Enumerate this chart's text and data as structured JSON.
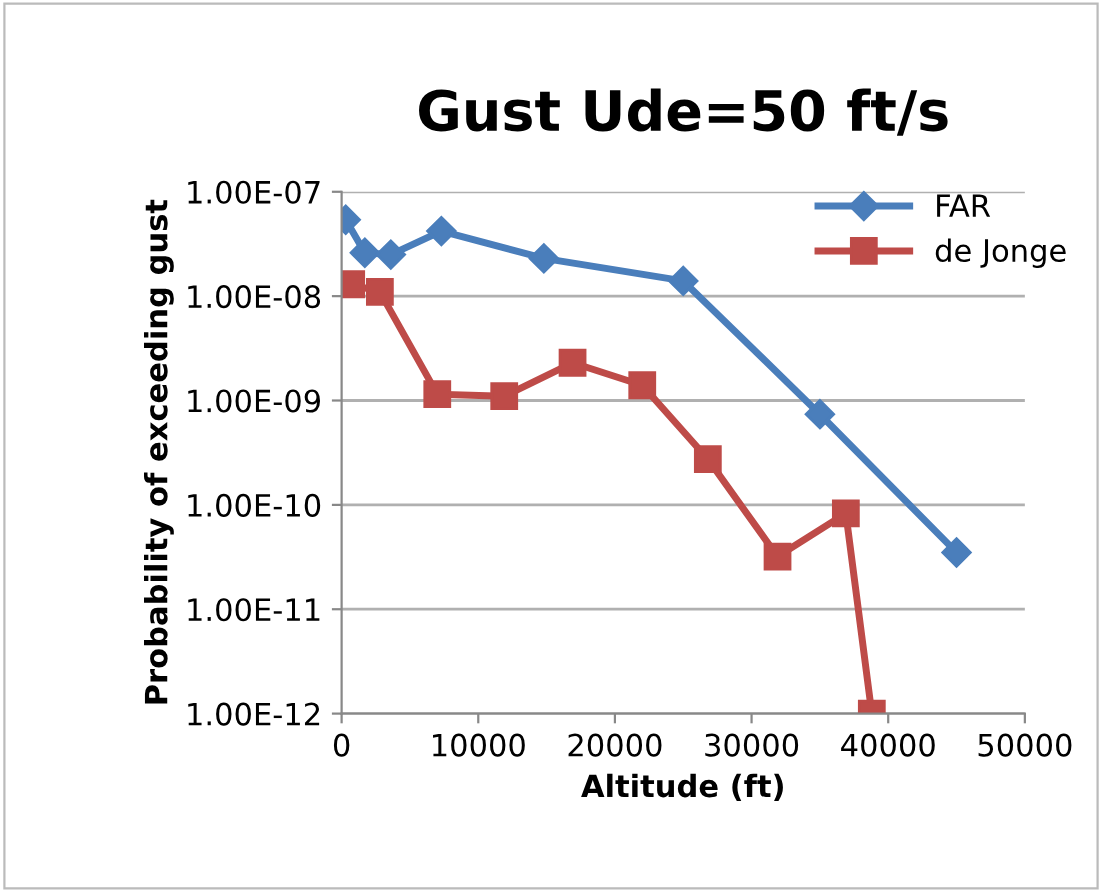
{
  "chart_data": {
    "type": "line",
    "title": "Gust Ude=50 ft/s",
    "xlabel": "Altitude (ft)",
    "ylabel": "Probability of exceeding gust",
    "log": "y",
    "grid": "y",
    "legend": "top right",
    "xlim": [
      0,
      50000
    ],
    "xticks": [
      0,
      10000,
      20000,
      30000,
      40000,
      50000
    ],
    "ylim": [
      1e-12,
      1e-07
    ],
    "yticks": [
      {
        "value": 1e-12,
        "label": "1.00E-12"
      },
      {
        "value": 1e-11,
        "label": "1.00E-11"
      },
      {
        "value": 1e-10,
        "label": "1.00E-10"
      },
      {
        "value": 1e-09,
        "label": "1.00E-09"
      },
      {
        "value": 1e-08,
        "label": "1.00E-08"
      },
      {
        "value": 1e-07,
        "label": "1.00E-07"
      }
    ],
    "series": [
      {
        "name": "FAR",
        "color": "#4a7ebb",
        "marker": "diamond",
        "x": [
          300,
          1700,
          3600,
          7300,
          14800,
          25000,
          35000,
          45000
        ],
        "values": [
          5.4e-08,
          2.6e-08,
          2.5e-08,
          4.2e-08,
          2.3e-08,
          1.4e-08,
          7.4e-10,
          3.5e-11
        ]
      },
      {
        "name": "de Jonge",
        "color": "#be4b48",
        "marker": "square",
        "x": [
          700,
          2800,
          7000,
          11900,
          16900,
          22000,
          26800,
          31900,
          36900,
          38800
        ],
        "values": [
          1.3e-08,
          1.1e-08,
          1.15e-09,
          1.1e-09,
          2.3e-09,
          1.4e-09,
          2.75e-10,
          3.2e-11,
          8.3e-11,
          1e-12
        ]
      }
    ]
  }
}
